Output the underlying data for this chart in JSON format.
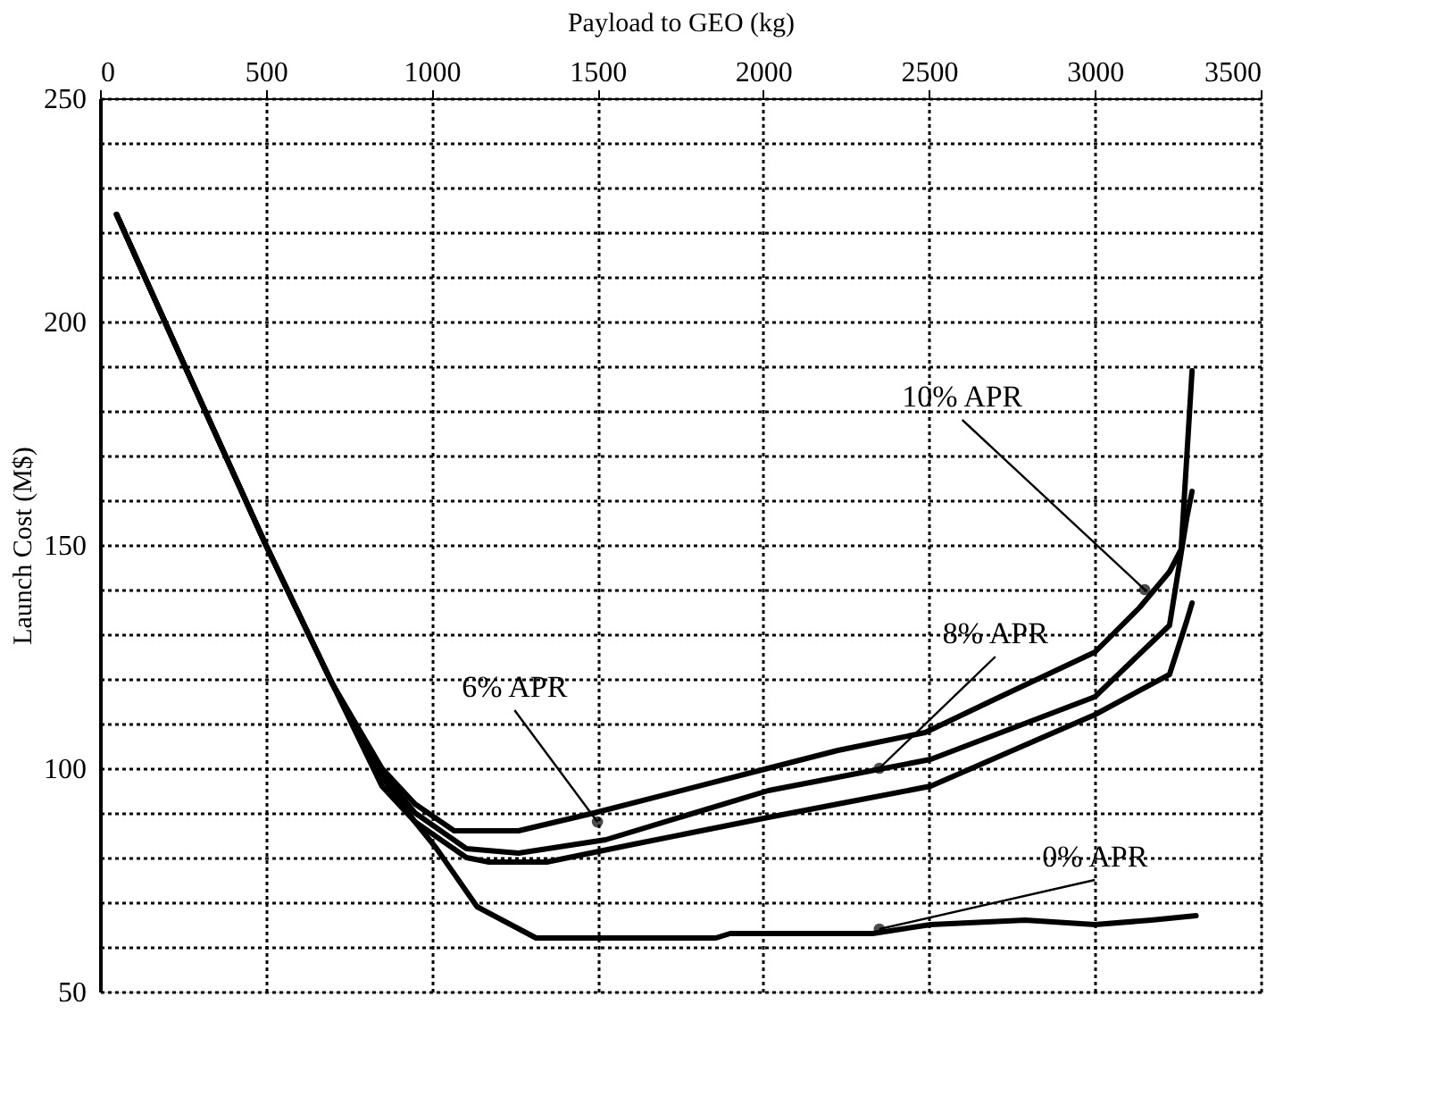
{
  "chart_data": {
    "type": "line",
    "xlabel": "Payload to GEO (kg)",
    "ylabel": "Launch Cost (M$)",
    "xlim": [
      0,
      3500
    ],
    "xticks": [
      0,
      500,
      1000,
      1500,
      2000,
      2500,
      3000,
      3500
    ],
    "ylim": [
      50,
      250
    ],
    "yticks": [
      50,
      {
        "value": 60,
        "label": null
      },
      {
        "value": 70,
        "label": null
      },
      {
        "value": 80,
        "label": null
      },
      {
        "value": 90,
        "label": null
      },
      100,
      {
        "value": 110,
        "label": null
      },
      {
        "value": 120,
        "label": null
      },
      {
        "value": 130,
        "label": null
      },
      {
        "value": 140,
        "label": null
      },
      150,
      {
        "value": 160,
        "label": null
      },
      {
        "value": 170,
        "label": null
      },
      {
        "value": 180,
        "label": null
      },
      {
        "value": 190,
        "label": null
      },
      200,
      {
        "value": 210,
        "label": null
      },
      {
        "value": 220,
        "label": null
      },
      {
        "value": 230,
        "label": null
      },
      {
        "value": 240,
        "label": null
      },
      250
    ],
    "grid": true,
    "line_style": "solid",
    "series": [
      {
        "color": "#000000",
        "x": [
          50,
          250,
          500,
          700,
          850,
          950,
          1068,
          1262,
          1490,
          2015,
          2225,
          2488,
          2714,
          3000,
          3135,
          3225,
          3260,
          3293
        ],
        "values": [
          224,
          191,
          150,
          119,
          100,
          92,
          86,
          86,
          90,
          100,
          104,
          108,
          116,
          126,
          136,
          144,
          149,
          189
        ]
      },
      {
        "color": "#000000",
        "x": [
          50,
          250,
          500,
          700,
          850,
          950,
          1105,
          1262,
          1525,
          2015,
          2225,
          2505,
          3000,
          3225,
          3277,
          3293
        ],
        "values": [
          224,
          191,
          150,
          119,
          99,
          90,
          82,
          81,
          84,
          95,
          98,
          102,
          116,
          132,
          156,
          162
        ]
      },
      {
        "color": "#000000",
        "x": [
          50,
          250,
          500,
          700,
          850,
          950,
          1105,
          1173,
          1347,
          1610,
          2015,
          2225,
          2505,
          3000,
          3225,
          3277,
          3293
        ],
        "values": [
          224,
          191,
          150,
          119,
          98,
          88,
          80,
          79,
          79,
          83,
          89,
          92,
          96,
          112,
          121,
          133,
          137
        ]
      },
      {
        "color": "#000000",
        "x": [
          50,
          250,
          500,
          700,
          850,
          950,
          1015,
          1137,
          1315,
          1857,
          1900,
          2330,
          2505,
          2790,
          3000,
          3170,
          3305
        ],
        "values": [
          224,
          191,
          150,
          119,
          96,
          88,
          82,
          69,
          62,
          62,
          63,
          63,
          65,
          66,
          65,
          66,
          67
        ]
      }
    ],
    "annotations": [
      {
        "text": "10% APR",
        "x": 3150,
        "y": 140
      },
      {
        "text": "8% APR",
        "x": 2350,
        "y": 100
      },
      {
        "text": "6% APR",
        "x": 1500,
        "y": 88
      },
      {
        "text": "0% APR",
        "x": 2350,
        "y": 64
      }
    ]
  }
}
